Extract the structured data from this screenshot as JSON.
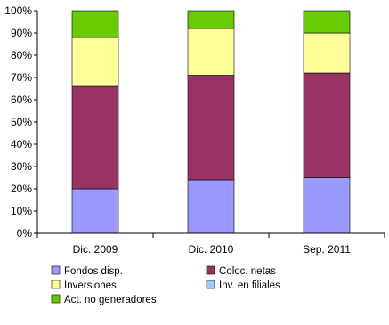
{
  "chart_data": {
    "type": "bar",
    "stacked": true,
    "percent_stacked": true,
    "categories": [
      "Dic. 2009",
      "Dic. 2010",
      "Sep. 2011"
    ],
    "series": [
      {
        "name": "Fondos disp.",
        "color": "#9999ff",
        "values": [
          20,
          24,
          25
        ]
      },
      {
        "name": "Coloc. netas",
        "color": "#993366",
        "values": [
          46,
          47,
          47
        ]
      },
      {
        "name": "Inversiones",
        "color": "#ffff99",
        "values": [
          22,
          21,
          18
        ]
      },
      {
        "name": "Inv. en filiales",
        "color": "#99ccff",
        "values": [
          0,
          0,
          0
        ]
      },
      {
        "name": "Act. no generadores",
        "color": "#66cc00",
        "values": [
          12,
          8,
          10
        ]
      }
    ],
    "yticks": [
      "0%",
      "10%",
      "20%",
      "30%",
      "40%",
      "50%",
      "60%",
      "70%",
      "80%",
      "90%",
      "100%"
    ],
    "ylim": [
      0,
      100
    ],
    "title": "",
    "xlabel": "",
    "ylabel": "",
    "legend_position": "bottom",
    "grid": false
  }
}
